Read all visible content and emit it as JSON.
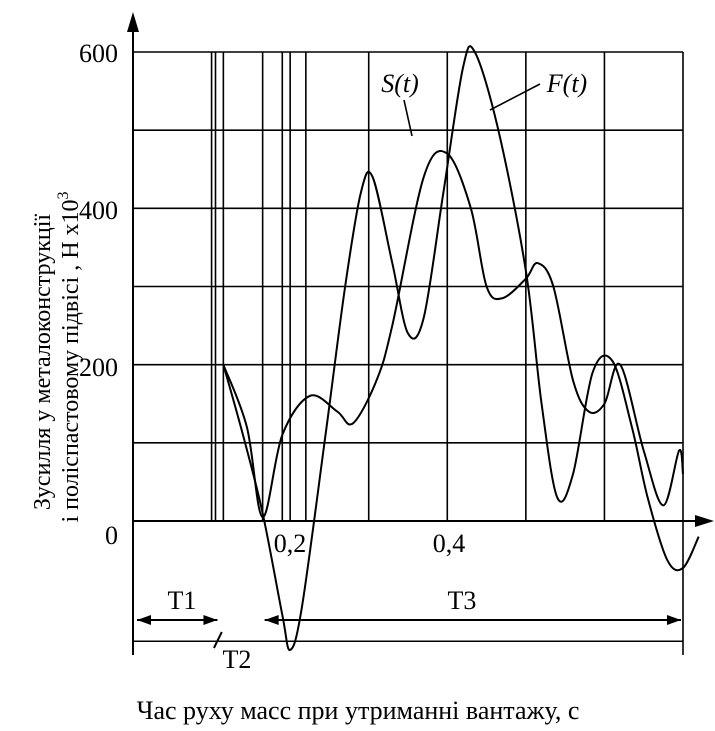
{
  "chart_data": {
    "type": "line",
    "ylabel_line1": "Зусилля у металоконструкції",
    "ylabel_line2": "і поліспастовому підвісі , Н х10",
    "ylabel_exp": "3",
    "xlabel": "Час руху масс при утриманні вантажу, с",
    "y_ticks": [
      "600",
      "400",
      "200",
      "0"
    ],
    "x_ticks": [
      "0,2",
      "0,4"
    ],
    "xlim": [
      0,
      0.7
    ],
    "ylim": [
      -160,
      620
    ],
    "phases": [
      {
        "label": "T1",
        "from": 0.0,
        "to": 0.11
      },
      {
        "label": "T2",
        "from": 0.11,
        "to": 0.165
      },
      {
        "label": "T3",
        "from": 0.165,
        "to": 0.7
      }
    ],
    "series": [
      {
        "name": "S(t)",
        "points": [
          [
            0.115,
            200
          ],
          [
            0.145,
            120
          ],
          [
            0.165,
            5
          ],
          [
            0.19,
            110
          ],
          [
            0.225,
            160
          ],
          [
            0.26,
            140
          ],
          [
            0.28,
            125
          ],
          [
            0.31,
            180
          ],
          [
            0.33,
            250
          ],
          [
            0.37,
            440
          ],
          [
            0.4,
            470
          ],
          [
            0.43,
            400
          ],
          [
            0.45,
            300
          ],
          [
            0.47,
            285
          ],
          [
            0.5,
            310
          ],
          [
            0.515,
            330
          ],
          [
            0.535,
            300
          ],
          [
            0.56,
            180
          ],
          [
            0.58,
            140
          ],
          [
            0.6,
            150
          ],
          [
            0.62,
            200
          ],
          [
            0.65,
            90
          ],
          [
            0.675,
            20
          ],
          [
            0.695,
            90
          ],
          [
            0.7,
            60
          ]
        ]
      },
      {
        "name": "F(t)",
        "points": [
          [
            0.115,
            200
          ],
          [
            0.14,
            110
          ],
          [
            0.165,
            10
          ],
          [
            0.19,
            -120
          ],
          [
            0.2,
            -165
          ],
          [
            0.215,
            -110
          ],
          [
            0.245,
            110
          ],
          [
            0.27,
            300
          ],
          [
            0.29,
            420
          ],
          [
            0.305,
            440
          ],
          [
            0.33,
            330
          ],
          [
            0.35,
            240
          ],
          [
            0.37,
            260
          ],
          [
            0.395,
            420
          ],
          [
            0.42,
            580
          ],
          [
            0.435,
            600
          ],
          [
            0.465,
            500
          ],
          [
            0.5,
            320
          ],
          [
            0.52,
            150
          ],
          [
            0.54,
            30
          ],
          [
            0.56,
            60
          ],
          [
            0.585,
            190
          ],
          [
            0.61,
            205
          ],
          [
            0.635,
            120
          ],
          [
            0.655,
            30
          ],
          [
            0.68,
            -50
          ],
          [
            0.7,
            -60
          ],
          [
            0.72,
            -20
          ]
        ]
      }
    ],
    "grid": true
  }
}
